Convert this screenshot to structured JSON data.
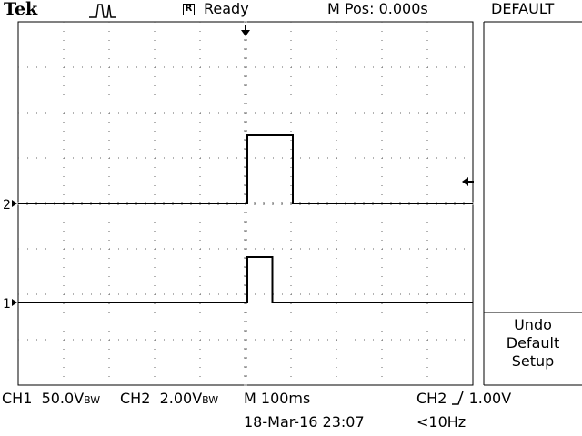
{
  "header": {
    "brand": "Tek",
    "acquisition_icon": "pulse-acquisition-icon",
    "run_badge": "R",
    "run_status": "Ready",
    "horizontal_position": "M Pos: 0.000s",
    "menu_title": "DEFAULT"
  },
  "side_menu": {
    "button_lines": [
      "Undo",
      "Default",
      "Setup"
    ]
  },
  "markers": {
    "ch1": "1",
    "ch2": "2"
  },
  "footer": {
    "ch1_label": "CH1",
    "ch1_scale": "50.0V",
    "ch1_bw": "BW",
    "ch2_label": "CH2",
    "ch2_scale": "2.00V",
    "ch2_bw": "BW",
    "timebase": "M 100ms",
    "trigger_source": "CH2",
    "trigger_level": "1.00V",
    "datetime": "18-Mar-16 23:07",
    "trigger_freq": "<10Hz"
  },
  "waveforms": {
    "ch2": {
      "baseline_div": 0,
      "pulse_start_div": 0,
      "pulse_end_div": 1.0,
      "pulse_height_div": 1.5
    },
    "ch1": {
      "baseline_div": 0,
      "pulse_start_div": 0,
      "pulse_end_div": 0.55,
      "pulse_height_div": 1.0
    }
  }
}
